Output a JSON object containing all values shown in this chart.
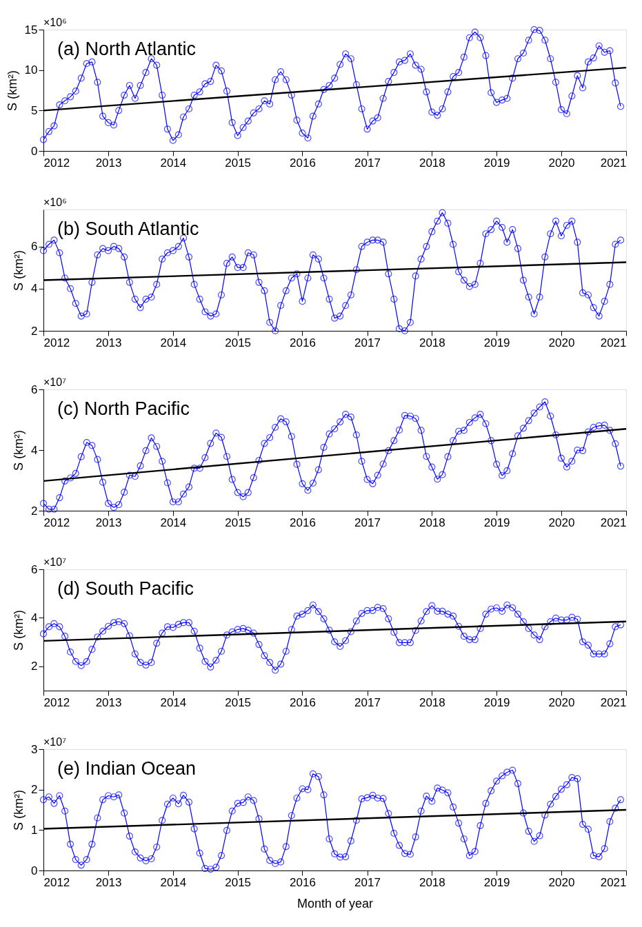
{
  "chart_data": [
    {
      "type": "line",
      "title": "(a) North Atlantic",
      "ylabel": "S (km²)",
      "annotations": [
        "×10⁶"
      ],
      "grid": false,
      "xlim": [
        "2012",
        "2021"
      ],
      "xticks": [
        "2012",
        "2013",
        "2014",
        "2015",
        "2016",
        "2017",
        "2018",
        "2019",
        "2020",
        "2021"
      ],
      "ylim": [
        0,
        15
      ],
      "yticks": [
        0,
        5,
        10,
        15
      ],
      "x": [
        "2012-01",
        "2012-02",
        "2012-03",
        "2012-04",
        "2012-05",
        "2012-06",
        "2012-07",
        "2012-08",
        "2012-09",
        "2012-10",
        "2012-11",
        "2012-12",
        "2013-01",
        "2013-02",
        "2013-03",
        "2013-04",
        "2013-05",
        "2013-06",
        "2013-07",
        "2013-08",
        "2013-09",
        "2013-10",
        "2013-11",
        "2013-12",
        "2014-01",
        "2014-02",
        "2014-03",
        "2014-04",
        "2014-05",
        "2014-06",
        "2014-07",
        "2014-08",
        "2014-09",
        "2014-10",
        "2014-11",
        "2014-12",
        "2015-01",
        "2015-02",
        "2015-03",
        "2015-04",
        "2015-05",
        "2015-06",
        "2015-07",
        "2015-08",
        "2015-09",
        "2015-10",
        "2015-11",
        "2015-12",
        "2016-01",
        "2016-02",
        "2016-03",
        "2016-04",
        "2016-05",
        "2016-06",
        "2016-07",
        "2016-08",
        "2016-09",
        "2016-10",
        "2016-11",
        "2016-12",
        "2017-01",
        "2017-02",
        "2017-03",
        "2017-04",
        "2017-05",
        "2017-06",
        "2017-07",
        "2017-08",
        "2017-09",
        "2017-10",
        "2017-11",
        "2017-12",
        "2018-01",
        "2018-02",
        "2018-03",
        "2018-04",
        "2018-05",
        "2018-06",
        "2018-07",
        "2018-08",
        "2018-09",
        "2018-10",
        "2018-11",
        "2018-12",
        "2019-01",
        "2019-02",
        "2019-03",
        "2019-04",
        "2019-05",
        "2019-06",
        "2019-07",
        "2019-08",
        "2019-09",
        "2019-10",
        "2019-11",
        "2019-12",
        "2020-01",
        "2020-02",
        "2020-03",
        "2020-04",
        "2020-05",
        "2020-06",
        "2020-07",
        "2020-08",
        "2020-09",
        "2020-10",
        "2020-11",
        "2020-12"
      ],
      "series": [
        {
          "color": "#0000ff",
          "marker": "circle",
          "values": [
            1.4,
            2.4,
            3.1,
            5.7,
            6.2,
            6.7,
            7.4,
            9.0,
            10.8,
            11.0,
            8.5,
            4.3,
            3.5,
            3.2,
            5.0,
            6.9,
            8.1,
            6.5,
            8.1,
            9.7,
            11.4,
            10.6,
            6.9,
            2.7,
            1.3,
            2.0,
            4.2,
            5.2,
            6.9,
            7.3,
            8.3,
            8.6,
            10.6,
            9.9,
            7.4,
            3.5,
            1.9,
            2.9,
            3.7,
            4.7,
            5.2,
            6.2,
            5.8,
            8.8,
            9.8,
            8.8,
            6.9,
            3.8,
            2.2,
            1.6,
            4.3,
            5.8,
            7.6,
            8.1,
            9.0,
            10.7,
            12.0,
            11.4,
            8.2,
            5.2,
            2.7,
            3.7,
            4.1,
            6.5,
            8.6,
            9.7,
            11.0,
            11.2,
            12.0,
            10.6,
            10.1,
            7.3,
            4.8,
            4.4,
            5.2,
            7.3,
            9.2,
            9.7,
            11.6,
            14.0,
            14.7,
            14.0,
            11.8,
            7.2,
            6.0,
            6.3,
            6.5,
            9.0,
            11.4,
            12.1,
            13.7,
            15.0,
            14.9,
            13.7,
            11.4,
            8.5,
            5.1,
            4.6,
            6.8,
            9.3,
            7.8,
            11.0,
            11.5,
            13.0,
            12.2,
            12.4,
            8.4,
            5.5
          ]
        },
        {
          "type": "line",
          "color": "#000000",
          "marker": "none",
          "x": [
            "2012-01",
            "2021-01"
          ],
          "values": [
            5.0,
            10.3
          ]
        }
      ]
    },
    {
      "type": "line",
      "title": "(b) South Atlantic",
      "ylabel": "S (km²)",
      "annotations": [
        "×10⁶"
      ],
      "grid": false,
      "xlim": [
        "2012",
        "2021"
      ],
      "xticks": [
        "2012",
        "2013",
        "2014",
        "2015",
        "2016",
        "2017",
        "2018",
        "2019",
        "2020",
        "2021"
      ],
      "ylim": [
        2,
        7.75
      ],
      "yticks": [
        2,
        4,
        6
      ],
      "x": [
        "2012-01",
        "2012-02",
        "2012-03",
        "2012-04",
        "2012-05",
        "2012-06",
        "2012-07",
        "2012-08",
        "2012-09",
        "2012-10",
        "2012-11",
        "2012-12",
        "2013-01",
        "2013-02",
        "2013-03",
        "2013-04",
        "2013-05",
        "2013-06",
        "2013-07",
        "2013-08",
        "2013-09",
        "2013-10",
        "2013-11",
        "2013-12",
        "2014-01",
        "2014-02",
        "2014-03",
        "2014-04",
        "2014-05",
        "2014-06",
        "2014-07",
        "2014-08",
        "2014-09",
        "2014-10",
        "2014-11",
        "2014-12",
        "2015-01",
        "2015-02",
        "2015-03",
        "2015-04",
        "2015-05",
        "2015-06",
        "2015-07",
        "2015-08",
        "2015-09",
        "2015-10",
        "2015-11",
        "2015-12",
        "2016-01",
        "2016-02",
        "2016-03",
        "2016-04",
        "2016-05",
        "2016-06",
        "2016-07",
        "2016-08",
        "2016-09",
        "2016-10",
        "2016-11",
        "2016-12",
        "2017-01",
        "2017-02",
        "2017-03",
        "2017-04",
        "2017-05",
        "2017-06",
        "2017-07",
        "2017-08",
        "2017-09",
        "2017-10",
        "2017-11",
        "2017-12",
        "2018-01",
        "2018-02",
        "2018-03",
        "2018-04",
        "2018-05",
        "2018-06",
        "2018-07",
        "2018-08",
        "2018-09",
        "2018-10",
        "2018-11",
        "2018-12",
        "2019-01",
        "2019-02",
        "2019-03",
        "2019-04",
        "2019-05",
        "2019-06",
        "2019-07",
        "2019-08",
        "2019-09",
        "2019-10",
        "2019-11",
        "2019-12",
        "2020-01",
        "2020-02",
        "2020-03",
        "2020-04",
        "2020-05",
        "2020-06",
        "2020-07",
        "2020-08",
        "2020-09",
        "2020-10",
        "2020-11",
        "2020-12"
      ],
      "series": [
        {
          "color": "#0000ff",
          "marker": "circle",
          "values": [
            5.8,
            6.1,
            6.3,
            5.7,
            4.5,
            4.0,
            3.3,
            2.7,
            2.8,
            4.3,
            5.6,
            5.9,
            5.8,
            6.0,
            5.9,
            5.5,
            4.3,
            3.5,
            3.1,
            3.5,
            3.6,
            4.2,
            5.4,
            5.7,
            5.8,
            6.0,
            6.4,
            5.5,
            4.2,
            3.5,
            2.9,
            2.7,
            2.8,
            3.7,
            5.2,
            5.5,
            5.0,
            5.0,
            5.7,
            5.6,
            4.3,
            3.9,
            2.4,
            2.0,
            3.2,
            3.9,
            4.5,
            4.7,
            3.4,
            4.5,
            5.6,
            5.4,
            4.5,
            3.5,
            2.6,
            2.7,
            3.2,
            3.7,
            4.9,
            6.0,
            6.2,
            6.3,
            6.3,
            6.2,
            4.7,
            3.5,
            2.1,
            2.0,
            2.4,
            4.6,
            5.4,
            6.0,
            6.7,
            7.2,
            7.6,
            7.1,
            6.1,
            4.8,
            4.4,
            4.1,
            4.2,
            5.2,
            6.6,
            6.8,
            7.2,
            6.9,
            6.2,
            6.8,
            5.9,
            4.4,
            3.6,
            2.8,
            3.6,
            5.5,
            6.6,
            7.2,
            6.5,
            7.0,
            7.2,
            6.2,
            3.8,
            3.7,
            3.1,
            2.7,
            3.4,
            4.2,
            6.1,
            6.3
          ]
        },
        {
          "type": "line",
          "color": "#000000",
          "marker": "none",
          "x": [
            "2012-01",
            "2021-01"
          ],
          "values": [
            4.4,
            5.25
          ]
        }
      ]
    },
    {
      "type": "line",
      "title": "(c) North Pacific",
      "ylabel": "S (km²)",
      "annotations": [
        "×10⁷"
      ],
      "grid": false,
      "xlim": [
        "2012",
        "2021"
      ],
      "xticks": [
        "2012",
        "2013",
        "2014",
        "2015",
        "2016",
        "2017",
        "2018",
        "2019",
        "2020",
        "2021"
      ],
      "ylim": [
        2,
        6
      ],
      "yticks": [
        2,
        4,
        6
      ],
      "x": [
        "2012-01",
        "2012-02",
        "2012-03",
        "2012-04",
        "2012-05",
        "2012-06",
        "2012-07",
        "2012-08",
        "2012-09",
        "2012-10",
        "2012-11",
        "2012-12",
        "2013-01",
        "2013-02",
        "2013-03",
        "2013-04",
        "2013-05",
        "2013-06",
        "2013-07",
        "2013-08",
        "2013-09",
        "2013-10",
        "2013-11",
        "2013-12",
        "2014-01",
        "2014-02",
        "2014-03",
        "2014-04",
        "2014-05",
        "2014-06",
        "2014-07",
        "2014-08",
        "2014-09",
        "2014-10",
        "2014-11",
        "2014-12",
        "2015-01",
        "2015-02",
        "2015-03",
        "2015-04",
        "2015-05",
        "2015-06",
        "2015-07",
        "2015-08",
        "2015-09",
        "2015-10",
        "2015-11",
        "2015-12",
        "2016-01",
        "2016-02",
        "2016-03",
        "2016-04",
        "2016-05",
        "2016-06",
        "2016-07",
        "2016-08",
        "2016-09",
        "2016-10",
        "2016-11",
        "2016-12",
        "2017-01",
        "2017-02",
        "2017-03",
        "2017-04",
        "2017-05",
        "2017-06",
        "2017-07",
        "2017-08",
        "2017-09",
        "2017-10",
        "2017-11",
        "2017-12",
        "2018-01",
        "2018-02",
        "2018-03",
        "2018-04",
        "2018-05",
        "2018-06",
        "2018-07",
        "2018-08",
        "2018-09",
        "2018-10",
        "2018-11",
        "2018-12",
        "2019-01",
        "2019-02",
        "2019-03",
        "2019-04",
        "2019-05",
        "2019-06",
        "2019-07",
        "2019-08",
        "2019-09",
        "2019-10",
        "2019-11",
        "2019-12",
        "2020-01",
        "2020-02",
        "2020-03",
        "2020-04",
        "2020-05",
        "2020-06",
        "2020-07",
        "2020-08",
        "2020-09",
        "2020-10",
        "2020-11",
        "2020-12"
      ],
      "series": [
        {
          "color": "#0000ff",
          "marker": "circle",
          "values": [
            2.24,
            2.05,
            2.05,
            2.43,
            2.98,
            3.08,
            3.23,
            3.78,
            4.25,
            4.15,
            3.69,
            2.94,
            2.24,
            2.11,
            2.2,
            2.61,
            3.17,
            3.13,
            3.48,
            3.98,
            4.4,
            4.12,
            3.63,
            2.92,
            2.29,
            2.29,
            2.55,
            2.78,
            3.4,
            3.4,
            3.75,
            4.22,
            4.56,
            4.42,
            3.79,
            3.03,
            2.6,
            2.46,
            2.6,
            3.09,
            3.66,
            4.22,
            4.41,
            4.75,
            5.03,
            4.93,
            4.45,
            3.53,
            2.89,
            2.67,
            2.91,
            3.35,
            4.09,
            4.53,
            4.7,
            4.93,
            5.18,
            5.09,
            4.5,
            3.63,
            3.03,
            2.89,
            3.17,
            3.54,
            3.98,
            4.31,
            4.66,
            5.14,
            5.12,
            5.04,
            4.65,
            3.79,
            3.44,
            3.04,
            3.19,
            3.78,
            4.31,
            4.62,
            4.65,
            4.91,
            5.06,
            5.18,
            4.87,
            4.31,
            3.53,
            3.16,
            3.32,
            3.88,
            4.47,
            4.72,
            4.97,
            5.22,
            5.42,
            5.59,
            5.12,
            4.5,
            3.73,
            3.44,
            3.63,
            4.0,
            3.98,
            4.6,
            4.75,
            4.8,
            4.82,
            4.65,
            4.21,
            3.47
          ]
        },
        {
          "type": "line",
          "color": "#000000",
          "marker": "none",
          "x": [
            "2012-01",
            "2021-01"
          ],
          "values": [
            2.98,
            4.7
          ]
        }
      ]
    },
    {
      "type": "line",
      "title": "(d) South Pacific",
      "ylabel": "S (km²)",
      "annotations": [
        "×10⁷"
      ],
      "grid": false,
      "xlim": [
        "2012",
        "2021"
      ],
      "xticks": [
        "2012",
        "2013",
        "2014",
        "2015",
        "2016",
        "2017",
        "2018",
        "2019",
        "2020",
        "2021"
      ],
      "ylim": [
        1,
        6
      ],
      "yticks": [
        2,
        4,
        6
      ],
      "x": [
        "2012-01",
        "2012-02",
        "2012-03",
        "2012-04",
        "2012-05",
        "2012-06",
        "2012-07",
        "2012-08",
        "2012-09",
        "2012-10",
        "2012-11",
        "2012-12",
        "2013-01",
        "2013-02",
        "2013-03",
        "2013-04",
        "2013-05",
        "2013-06",
        "2013-07",
        "2013-08",
        "2013-09",
        "2013-10",
        "2013-11",
        "2013-12",
        "2014-01",
        "2014-02",
        "2014-03",
        "2014-04",
        "2014-05",
        "2014-06",
        "2014-07",
        "2014-08",
        "2014-09",
        "2014-10",
        "2014-11",
        "2014-12",
        "2015-01",
        "2015-02",
        "2015-03",
        "2015-04",
        "2015-05",
        "2015-06",
        "2015-07",
        "2015-08",
        "2015-09",
        "2015-10",
        "2015-11",
        "2015-12",
        "2016-01",
        "2016-02",
        "2016-03",
        "2016-04",
        "2016-05",
        "2016-06",
        "2016-07",
        "2016-08",
        "2016-09",
        "2016-10",
        "2016-11",
        "2016-12",
        "2017-01",
        "2017-02",
        "2017-03",
        "2017-04",
        "2017-05",
        "2017-06",
        "2017-07",
        "2017-08",
        "2017-09",
        "2017-10",
        "2017-11",
        "2017-12",
        "2018-01",
        "2018-02",
        "2018-03",
        "2018-04",
        "2018-05",
        "2018-06",
        "2018-07",
        "2018-08",
        "2018-09",
        "2018-10",
        "2018-11",
        "2018-12",
        "2019-01",
        "2019-02",
        "2019-03",
        "2019-04",
        "2019-05",
        "2019-06",
        "2019-07",
        "2019-08",
        "2019-09",
        "2019-10",
        "2019-11",
        "2019-12",
        "2020-01",
        "2020-02",
        "2020-03",
        "2020-04",
        "2020-05",
        "2020-06",
        "2020-07",
        "2020-08",
        "2020-09",
        "2020-10",
        "2020-11",
        "2020-12"
      ],
      "series": [
        {
          "color": "#0000ff",
          "marker": "circle",
          "values": [
            3.34,
            3.63,
            3.76,
            3.63,
            3.24,
            2.59,
            2.2,
            2.03,
            2.2,
            2.7,
            3.21,
            3.45,
            3.65,
            3.8,
            3.84,
            3.76,
            3.26,
            2.51,
            2.16,
            2.05,
            2.16,
            2.95,
            3.37,
            3.63,
            3.6,
            3.73,
            3.8,
            3.8,
            3.45,
            2.75,
            2.2,
            1.97,
            2.25,
            2.62,
            3.29,
            3.42,
            3.52,
            3.56,
            3.49,
            3.37,
            2.9,
            2.44,
            2.16,
            1.84,
            2.09,
            2.62,
            3.52,
            4.07,
            4.15,
            4.3,
            4.53,
            4.26,
            3.96,
            3.49,
            3.01,
            2.82,
            3.06,
            3.43,
            3.87,
            4.18,
            4.3,
            4.3,
            4.43,
            4.38,
            3.96,
            3.4,
            2.98,
            2.98,
            2.98,
            3.48,
            3.87,
            4.26,
            4.5,
            4.27,
            4.27,
            4.15,
            4.07,
            3.65,
            3.24,
            3.1,
            3.1,
            3.56,
            4.15,
            4.36,
            4.41,
            4.27,
            4.53,
            4.41,
            4.15,
            3.84,
            3.56,
            3.29,
            3.1,
            3.63,
            3.84,
            3.99,
            3.91,
            3.91,
            4.02,
            3.94,
            3.01,
            2.87,
            2.51,
            2.51,
            2.51,
            2.93,
            3.63,
            3.71
          ]
        },
        {
          "type": "line",
          "color": "#000000",
          "marker": "none",
          "x": [
            "2012-01",
            "2021-01"
          ],
          "values": [
            3.05,
            3.85
          ]
        }
      ]
    },
    {
      "type": "line",
      "title": "(e) Indian Ocean",
      "xlabel": "Month of year",
      "ylabel": "S (km²)",
      "annotations": [
        "×10⁷"
      ],
      "grid": false,
      "xlim": [
        "2012",
        "2021"
      ],
      "xticks": [
        "2012",
        "2013",
        "2014",
        "2015",
        "2016",
        "2017",
        "2018",
        "2019",
        "2020",
        "2021"
      ],
      "ylim": [
        0,
        3
      ],
      "yticks": [
        0,
        1,
        2,
        3
      ],
      "x": [
        "2012-01",
        "2012-02",
        "2012-03",
        "2012-04",
        "2012-05",
        "2012-06",
        "2012-07",
        "2012-08",
        "2012-09",
        "2012-10",
        "2012-11",
        "2012-12",
        "2013-01",
        "2013-02",
        "2013-03",
        "2013-04",
        "2013-05",
        "2013-06",
        "2013-07",
        "2013-08",
        "2013-09",
        "2013-10",
        "2013-11",
        "2013-12",
        "2014-01",
        "2014-02",
        "2014-03",
        "2014-04",
        "2014-05",
        "2014-06",
        "2014-07",
        "2014-08",
        "2014-09",
        "2014-10",
        "2014-11",
        "2014-12",
        "2015-01",
        "2015-02",
        "2015-03",
        "2015-04",
        "2015-05",
        "2015-06",
        "2015-07",
        "2015-08",
        "2015-09",
        "2015-10",
        "2015-11",
        "2015-12",
        "2016-01",
        "2016-02",
        "2016-03",
        "2016-04",
        "2016-05",
        "2016-06",
        "2016-07",
        "2016-08",
        "2016-09",
        "2016-10",
        "2016-11",
        "2016-12",
        "2017-01",
        "2017-02",
        "2017-03",
        "2017-04",
        "2017-05",
        "2017-06",
        "2017-07",
        "2017-08",
        "2017-09",
        "2017-10",
        "2017-11",
        "2017-12",
        "2018-01",
        "2018-02",
        "2018-03",
        "2018-04",
        "2018-05",
        "2018-06",
        "2018-07",
        "2018-08",
        "2018-09",
        "2018-10",
        "2018-11",
        "2018-12",
        "2019-01",
        "2019-02",
        "2019-03",
        "2019-04",
        "2019-05",
        "2019-06",
        "2019-07",
        "2019-08",
        "2019-09",
        "2019-10",
        "2019-11",
        "2019-12",
        "2020-01",
        "2020-02",
        "2020-03",
        "2020-04",
        "2020-05",
        "2020-06",
        "2020-07",
        "2020-08",
        "2020-09",
        "2020-10",
        "2020-11",
        "2020-12"
      ],
      "series": [
        {
          "color": "#0000ff",
          "marker": "circle",
          "values": [
            1.75,
            1.82,
            1.66,
            1.85,
            1.47,
            0.65,
            0.27,
            0.13,
            0.27,
            0.65,
            1.3,
            1.75,
            1.85,
            1.82,
            1.87,
            1.42,
            0.85,
            0.46,
            0.31,
            0.24,
            0.29,
            0.58,
            1.24,
            1.64,
            1.79,
            1.65,
            1.86,
            1.69,
            1.03,
            0.43,
            0.05,
            0.03,
            0.08,
            0.37,
            0.99,
            1.47,
            1.66,
            1.68,
            1.82,
            1.73,
            1.28,
            0.53,
            0.25,
            0.17,
            0.21,
            0.59,
            1.36,
            1.79,
            2.02,
            2.0,
            2.39,
            2.32,
            1.87,
            0.78,
            0.41,
            0.33,
            0.34,
            0.73,
            1.24,
            1.77,
            1.8,
            1.86,
            1.79,
            1.78,
            1.41,
            0.92,
            0.62,
            0.42,
            0.4,
            0.83,
            1.47,
            1.84,
            1.71,
            2.04,
            1.99,
            1.92,
            1.57,
            1.17,
            0.78,
            0.37,
            0.47,
            1.11,
            1.66,
            1.97,
            2.21,
            2.34,
            2.43,
            2.48,
            2.15,
            1.42,
            0.97,
            0.72,
            0.86,
            1.37,
            1.64,
            1.83,
            2.01,
            2.12,
            2.3,
            2.27,
            1.14,
            1.02,
            0.37,
            0.34,
            0.54,
            1.21,
            1.54,
            1.75
          ]
        },
        {
          "type": "line",
          "color": "#000000",
          "marker": "none",
          "x": [
            "2012-01",
            "2021-01"
          ],
          "values": [
            1.03,
            1.5
          ]
        }
      ]
    }
  ]
}
